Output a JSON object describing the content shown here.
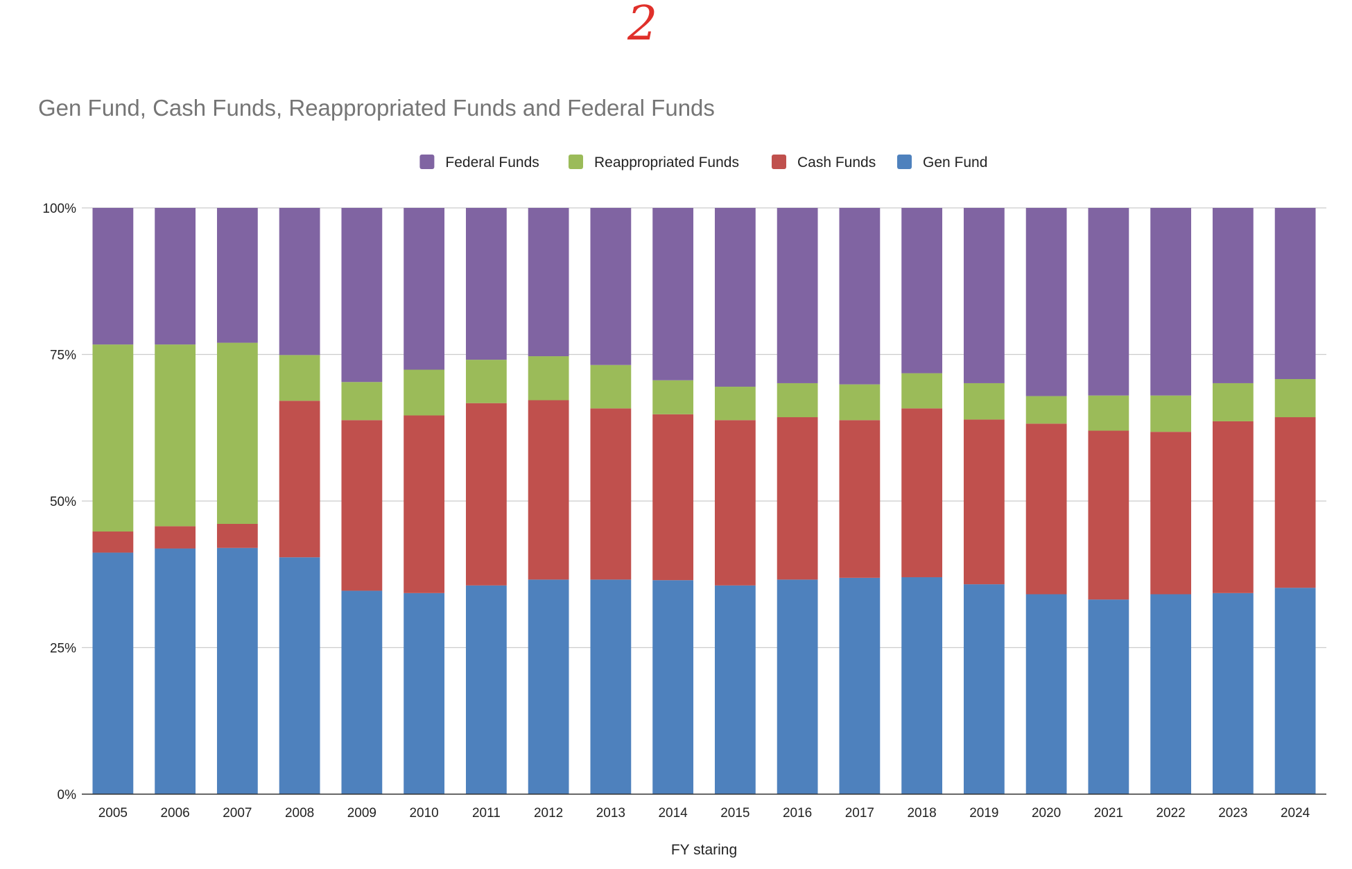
{
  "annotation": "2",
  "chart_data": {
    "type": "bar",
    "stacked": "percent",
    "title": "Gen Fund, Cash Funds, Reappropriated Funds and Federal Funds",
    "xlabel": "FY staring",
    "ylabel": "",
    "ylim": [
      0,
      100
    ],
    "yticks": [
      "0%",
      "25%",
      "50%",
      "75%",
      "100%"
    ],
    "grid": true,
    "legend_position": "top",
    "legend_order": [
      "Federal Funds",
      "Reappropriated Funds",
      "Cash Funds",
      "Gen Fund"
    ],
    "categories": [
      "2005",
      "2006",
      "2007",
      "2008",
      "2009",
      "2010",
      "2011",
      "2012",
      "2013",
      "2014",
      "2015",
      "2016",
      "2017",
      "2018",
      "2019",
      "2020",
      "2021",
      "2022",
      "2023",
      "2024"
    ],
    "series": [
      {
        "name": "Gen Fund",
        "color": "#4e81bd",
        "values": [
          41.2,
          41.9,
          42.0,
          40.4,
          34.7,
          34.3,
          35.6,
          36.6,
          36.6,
          36.5,
          35.6,
          36.6,
          36.9,
          37.0,
          35.8,
          34.1,
          33.2,
          34.1,
          34.3,
          35.2
        ]
      },
      {
        "name": "Cash Funds",
        "color": "#c0504d",
        "values": [
          3.6,
          3.8,
          4.1,
          26.7,
          29.1,
          30.3,
          31.1,
          30.6,
          29.2,
          28.3,
          28.2,
          27.7,
          26.9,
          28.8,
          28.1,
          29.1,
          28.8,
          27.7,
          29.3,
          29.1
        ]
      },
      {
        "name": "Reappropriated Funds",
        "color": "#9bbb59",
        "values": [
          31.9,
          31.0,
          30.9,
          7.8,
          6.5,
          7.8,
          7.4,
          7.5,
          7.4,
          5.8,
          5.7,
          5.8,
          6.1,
          6.0,
          6.2,
          4.7,
          6.0,
          6.2,
          6.5,
          6.5
        ]
      },
      {
        "name": "Federal Funds",
        "color": "#8064a2",
        "values": [
          23.3,
          23.3,
          23.0,
          25.1,
          29.7,
          27.6,
          25.9,
          25.3,
          26.8,
          29.4,
          30.5,
          29.9,
          30.1,
          28.2,
          29.9,
          32.1,
          32.0,
          32.0,
          29.9,
          29.2
        ]
      }
    ]
  }
}
